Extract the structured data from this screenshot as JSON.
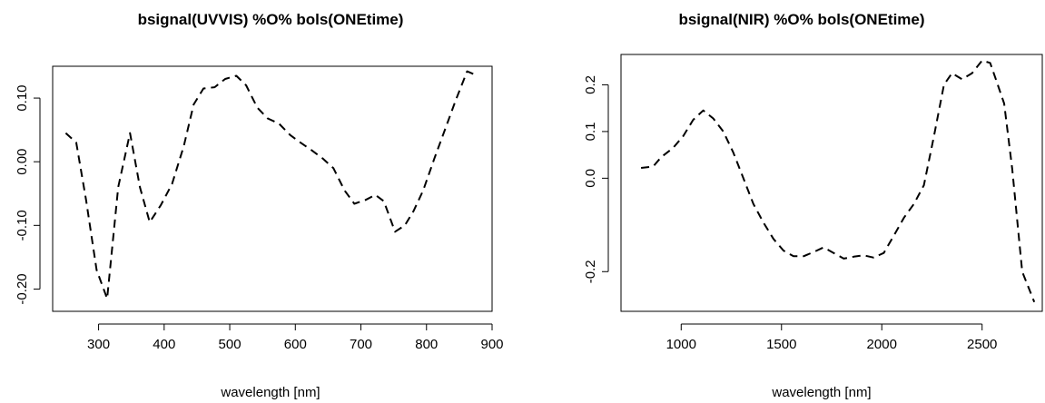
{
  "chart_data": [
    {
      "type": "line",
      "title": "bsignal(UVVIS) %O% bols(ONEtime)",
      "xlabel": "wavelength [nm]",
      "ylabel": "",
      "xlim": [
        230,
        900
      ],
      "ylim": [
        -0.235,
        0.15
      ],
      "xticks": [
        300,
        400,
        500,
        600,
        700,
        800,
        900
      ],
      "yticks": [
        -0.2,
        -0.1,
        0.0,
        0.1
      ],
      "ytick_labels": [
        "-0.20",
        "-0.10",
        "0.00",
        "0.10"
      ],
      "grid": false,
      "line_style": "dashed",
      "series": [
        {
          "x": [
            250,
            266,
            281,
            297,
            313,
            330,
            348,
            363,
            378,
            395,
            412,
            430,
            445,
            460,
            477,
            493,
            510,
            525,
            542,
            558,
            575,
            592,
            608,
            625,
            642,
            658,
            675,
            690,
            707,
            722,
            735,
            752,
            767,
            780,
            795,
            812,
            828,
            845,
            862,
            878
          ],
          "y": [
            0.045,
            0.03,
            -0.06,
            -0.17,
            -0.215,
            -0.04,
            0.045,
            -0.04,
            -0.095,
            -0.068,
            -0.035,
            0.025,
            0.09,
            0.115,
            0.117,
            0.13,
            0.135,
            0.12,
            0.085,
            0.068,
            0.06,
            0.042,
            0.03,
            0.018,
            0.005,
            -0.01,
            -0.045,
            -0.066,
            -0.06,
            -0.052,
            -0.062,
            -0.11,
            -0.1,
            -0.078,
            -0.045,
            0.005,
            0.05,
            0.098,
            0.142,
            0.135
          ]
        }
      ]
    },
    {
      "type": "line",
      "title": "bsignal(NIR) %O% bols(ONEtime)",
      "xlabel": "wavelength [nm]",
      "ylabel": "",
      "xlim": [
        700,
        2800
      ],
      "ylim": [
        -0.285,
        0.265
      ],
      "xticks": [
        1000,
        1500,
        2000,
        2500
      ],
      "yticks": [
        -0.2,
        0.0,
        0.1,
        0.2
      ],
      "ytick_labels": [
        "-0.2",
        "0.0",
        "0.1",
        "0.2"
      ],
      "grid": false,
      "line_style": "dashed",
      "series": [
        {
          "x": [
            800,
            860,
            900,
            960,
            1010,
            1060,
            1110,
            1160,
            1210,
            1260,
            1310,
            1360,
            1410,
            1460,
            1510,
            1560,
            1610,
            1660,
            1710,
            1760,
            1810,
            1860,
            1910,
            1960,
            2010,
            2060,
            2110,
            2160,
            2210,
            2260,
            2310,
            2350,
            2400,
            2450,
            2500,
            2540,
            2570,
            2610,
            2650,
            2700,
            2760
          ],
          "y": [
            0.022,
            0.025,
            0.045,
            0.065,
            0.09,
            0.125,
            0.145,
            0.128,
            0.1,
            0.055,
            0.0,
            -0.055,
            -0.095,
            -0.13,
            -0.155,
            -0.167,
            -0.167,
            -0.158,
            -0.148,
            -0.16,
            -0.172,
            -0.168,
            -0.165,
            -0.17,
            -0.16,
            -0.123,
            -0.085,
            -0.055,
            -0.015,
            0.09,
            0.2,
            0.225,
            0.212,
            0.225,
            0.252,
            0.247,
            0.21,
            0.16,
            0.02,
            -0.2,
            -0.265
          ]
        }
      ]
    }
  ]
}
